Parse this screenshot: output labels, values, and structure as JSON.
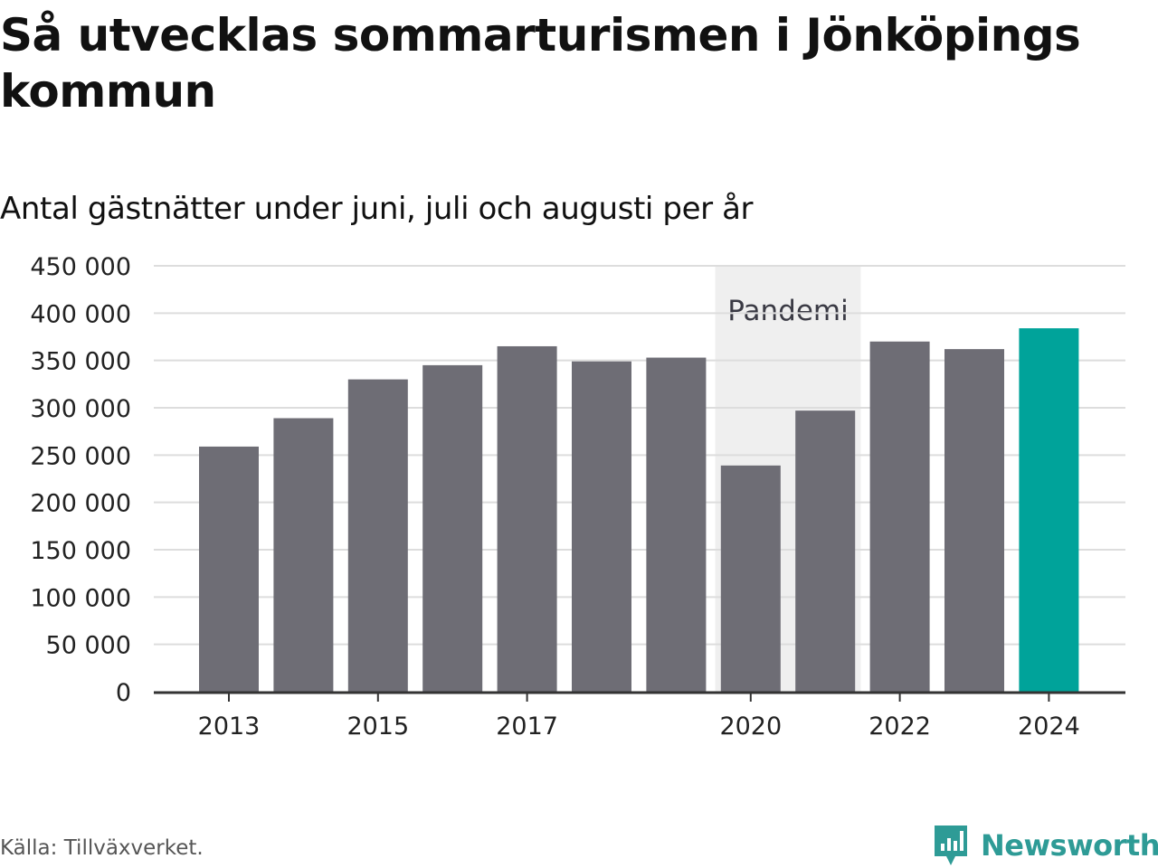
{
  "title": "Så utvecklas sommarturismen i Jönköpings kommun",
  "subtitle": "Antal gästnätter under juni, juli och augusti per år",
  "source": "Källa: Tillväxverket.",
  "logo": {
    "text": "Newsworthy",
    "icon": "newsworthy-logo-icon"
  },
  "colors": {
    "bar": "#6e6d75",
    "highlight": "#00a39a",
    "band": "#efefef",
    "grid": "#dddddd",
    "axis": "#333333",
    "brand": "#2e9b96"
  },
  "chart_data": {
    "type": "bar",
    "categories": [
      "2013",
      "2014",
      "2015",
      "2016",
      "2017",
      "2018",
      "2019",
      "2020",
      "2021",
      "2022",
      "2023",
      "2024"
    ],
    "values": [
      259000,
      289000,
      330000,
      345000,
      365000,
      349000,
      353000,
      239000,
      297000,
      370000,
      362000,
      384000
    ],
    "highlight": "2024",
    "x_tick_labels": [
      "2013",
      "2015",
      "2017",
      "2020",
      "2022",
      "2024"
    ],
    "y_ticks": [
      0,
      50000,
      100000,
      150000,
      200000,
      250000,
      300000,
      350000,
      400000,
      450000
    ],
    "y_tick_labels": [
      "0",
      "50 000",
      "100 000",
      "150 000",
      "200 000",
      "250 000",
      "300 000",
      "350 000",
      "400 000",
      "450 000"
    ],
    "ylim": [
      0,
      450000
    ],
    "grid": true,
    "annotations": [
      {
        "label": "Pandemi",
        "from": "2020",
        "to": "2021"
      }
    ]
  }
}
